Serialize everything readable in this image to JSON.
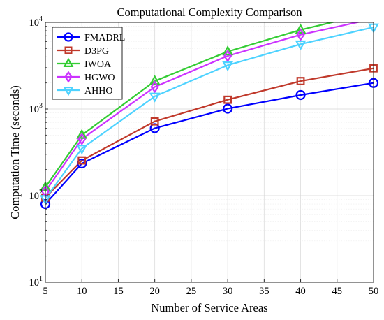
{
  "chart_data": {
    "type": "line",
    "title": "Computational Complexity Comparison",
    "xlabel": "Number of Service Areas",
    "ylabel": "Computation Time (seconds)",
    "x": [
      5,
      10,
      20,
      30,
      40,
      50
    ],
    "xticks": [
      "5",
      "10",
      "15",
      "20",
      "25",
      "30",
      "35",
      "40",
      "45",
      "50"
    ],
    "xlim": [
      5,
      50
    ],
    "ylim": [
      10,
      10000
    ],
    "yscale": "log",
    "yticks": [
      {
        "value": 10,
        "base": "10",
        "exp": "1"
      },
      {
        "value": 100,
        "base": "10",
        "exp": "2"
      },
      {
        "value": 1000,
        "base": "10",
        "exp": "3"
      },
      {
        "value": 10000,
        "base": "10",
        "exp": "4"
      }
    ],
    "grid": true,
    "legend_position": "top-left",
    "series": [
      {
        "name": "FMADRL",
        "color": "#0000ff",
        "marker": "circle",
        "values": [
          80,
          235,
          600,
          1010,
          1450,
          2000
        ]
      },
      {
        "name": "D3PG",
        "color": "#c0392b",
        "marker": "square",
        "values": [
          95,
          255,
          720,
          1280,
          2100,
          2950
        ]
      },
      {
        "name": "IWOA",
        "color": "#33cc33",
        "marker": "triangle-up",
        "values": [
          125,
          500,
          2100,
          4600,
          8200,
          13000
        ]
      },
      {
        "name": "HGWO",
        "color": "#cc33ff",
        "marker": "diamond",
        "values": [
          112,
          450,
          1800,
          4100,
          7200,
          11000
        ]
      },
      {
        "name": "AHHO",
        "color": "#4dd2ff",
        "marker": "triangle-down",
        "values": [
          92,
          350,
          1400,
          3200,
          5600,
          8800
        ]
      }
    ]
  }
}
